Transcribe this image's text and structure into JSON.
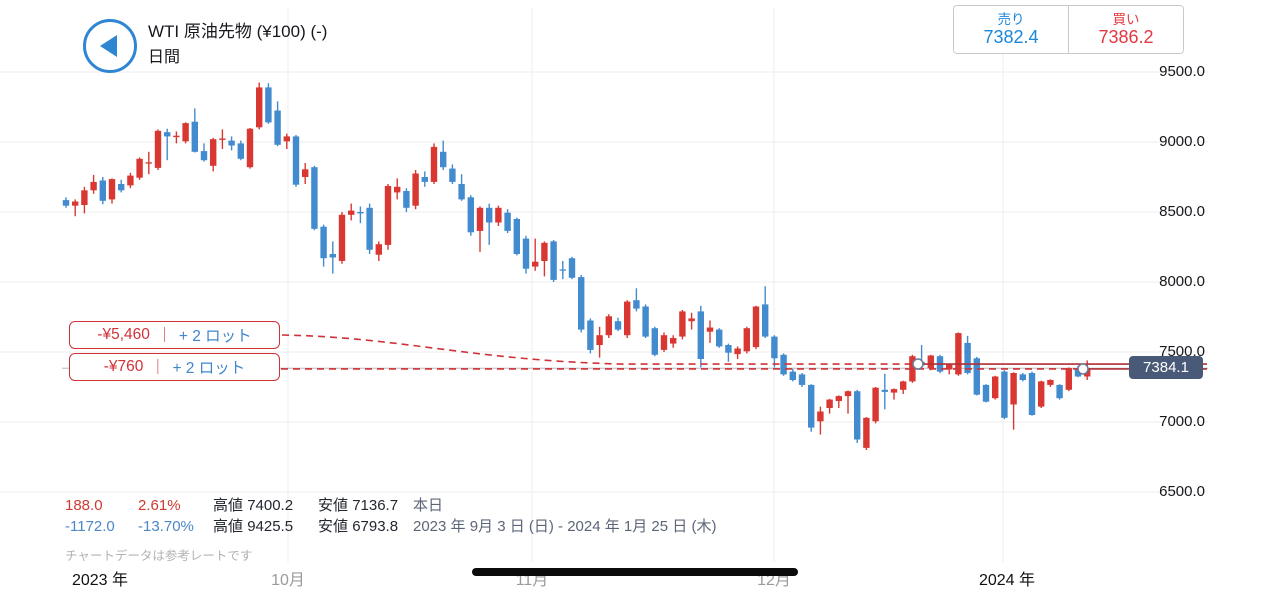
{
  "header": {
    "title": "WTI 原油先物 (¥100) (-)",
    "timeframe": "日間"
  },
  "quote_panel": {
    "sell_label": "売り",
    "sell_price": "7382.4",
    "buy_label": "買い",
    "buy_price": "7386.2"
  },
  "positions": [
    {
      "pnl": "-¥5,460",
      "divider": "｜",
      "lots": "+ 2 ロット"
    },
    {
      "pnl": "-¥760",
      "divider": "｜",
      "lots": "+ 2 ロット"
    }
  ],
  "price_badge": "7384.1",
  "stats": {
    "today": {
      "change": "188.0",
      "change_pct": "2.61%",
      "high_label": "高値",
      "high": "7400.2",
      "low_label": "安値",
      "low": "7136.7",
      "period": "本日"
    },
    "range": {
      "change": "-1172.0",
      "change_pct": "-13.70%",
      "high_label": "高値",
      "high": "9425.5",
      "low_label": "安値",
      "low": "6793.8",
      "period": "2023 年 9月 3 日 (日) - 2024 年 1月 25 日 (木)"
    }
  },
  "disclaimer": "チャートデータは参考レートです",
  "chart_data": {
    "type": "candlestick",
    "symbol": "WTI 原油先物 (¥100)",
    "timeframe": "日間",
    "current_price": 7384.1,
    "y_axis": {
      "ticks": [
        "9500.0",
        "9000.0",
        "8500.0",
        "8000.0",
        "7500.0",
        "7000.0",
        "6500.0"
      ],
      "tick_values": [
        9500,
        9000,
        8500,
        8000,
        7500,
        7000,
        6500
      ],
      "range": [
        6500,
        9500
      ]
    },
    "x_axis": {
      "labels": [
        "2023 年",
        "10月",
        "11月",
        "12月",
        "2024 年"
      ],
      "major": [
        true,
        false,
        false,
        false,
        true
      ]
    },
    "colors": {
      "up": "#d93832",
      "down": "#428bce",
      "grid": "#ededed",
      "dashed_line": "#cf3339",
      "solid_line": "#b12f36",
      "price_line": "#a9b0ba",
      "badge_bg": "#495a78"
    },
    "position_lines": [
      {
        "price": 7414,
        "label_pnl": "-¥5,460",
        "lots": "+ 2 ロット",
        "marker_x_frac": 0.835
      },
      {
        "price": 7379,
        "label_pnl": "-¥760",
        "lots": "+ 2 ロット",
        "marker_x_frac": 0.997
      }
    ],
    "candles_ohlc": [
      [
        8585,
        8605,
        8530,
        8545
      ],
      [
        8545,
        8590,
        8470,
        8575
      ],
      [
        8550,
        8680,
        8490,
        8655
      ],
      [
        8655,
        8765,
        8630,
        8715
      ],
      [
        8725,
        8750,
        8555,
        8580
      ],
      [
        8590,
        8740,
        8560,
        8735
      ],
      [
        8700,
        8730,
        8640,
        8655
      ],
      [
        8690,
        8780,
        8670,
        8760
      ],
      [
        8745,
        8890,
        8730,
        8880
      ],
      [
        8850,
        8930,
        8770,
        8855
      ],
      [
        8815,
        9090,
        8800,
        9080
      ],
      [
        9070,
        9095,
        8870,
        9040
      ],
      [
        9035,
        9075,
        8990,
        9045
      ],
      [
        9005,
        9140,
        8990,
        9135
      ],
      [
        9145,
        9240,
        8925,
        8930
      ],
      [
        8935,
        8990,
        8860,
        8870
      ],
      [
        8830,
        9030,
        8790,
        9020
      ],
      [
        9015,
        9090,
        8950,
        9025
      ],
      [
        9010,
        9040,
        8940,
        8975
      ],
      [
        8990,
        9010,
        8870,
        8880
      ],
      [
        8820,
        9100,
        8810,
        9095
      ],
      [
        9105,
        9425,
        9090,
        9390
      ],
      [
        9390,
        9420,
        9130,
        9140
      ],
      [
        9225,
        9290,
        8970,
        8980
      ],
      [
        9005,
        9060,
        8950,
        9040
      ],
      [
        9040,
        9050,
        8680,
        8695
      ],
      [
        8750,
        8850,
        8700,
        8805
      ],
      [
        8820,
        8830,
        8370,
        8380
      ],
      [
        8395,
        8410,
        8110,
        8170
      ],
      [
        8200,
        8290,
        8060,
        8175
      ],
      [
        8150,
        8500,
        8130,
        8480
      ],
      [
        8480,
        8560,
        8440,
        8510
      ],
      [
        8500,
        8540,
        8420,
        8490
      ],
      [
        8530,
        8560,
        8200,
        8230
      ],
      [
        8195,
        8290,
        8150,
        8270
      ],
      [
        8265,
        8700,
        8230,
        8686
      ],
      [
        8640,
        8740,
        8590,
        8680
      ],
      [
        8650,
        8670,
        8500,
        8530
      ],
      [
        8545,
        8800,
        8520,
        8775
      ],
      [
        8750,
        8790,
        8680,
        8715
      ],
      [
        8715,
        8990,
        8700,
        8965
      ],
      [
        8930,
        9010,
        8800,
        8820
      ],
      [
        8810,
        8840,
        8700,
        8715
      ],
      [
        8700,
        8770,
        8580,
        8590
      ],
      [
        8605,
        8620,
        8330,
        8355
      ],
      [
        8365,
        8540,
        8215,
        8530
      ],
      [
        8530,
        8560,
        8265,
        8425
      ],
      [
        8425,
        8545,
        8400,
        8530
      ],
      [
        8495,
        8520,
        8350,
        8365
      ],
      [
        8450,
        8460,
        8190,
        8200
      ],
      [
        8310,
        8330,
        8060,
        8095
      ],
      [
        8110,
        8310,
        8080,
        8145
      ],
      [
        8150,
        8290,
        8040,
        8280
      ],
      [
        8290,
        8300,
        8000,
        8015
      ],
      [
        8090,
        8150,
        8020,
        8085
      ],
      [
        8170,
        8180,
        8020,
        8030
      ],
      [
        8035,
        8050,
        7640,
        7660
      ],
      [
        7725,
        7740,
        7490,
        7515
      ],
      [
        7550,
        7680,
        7460,
        7620
      ],
      [
        7620,
        7770,
        7600,
        7755
      ],
      [
        7720,
        7745,
        7650,
        7660
      ],
      [
        7620,
        7870,
        7600,
        7860
      ],
      [
        7870,
        7955,
        7790,
        7810
      ],
      [
        7825,
        7840,
        7600,
        7610
      ],
      [
        7670,
        7680,
        7470,
        7480
      ],
      [
        7515,
        7640,
        7500,
        7620
      ],
      [
        7560,
        7620,
        7530,
        7600
      ],
      [
        7610,
        7800,
        7590,
        7790
      ],
      [
        7720,
        7780,
        7660,
        7740
      ],
      [
        7790,
        7830,
        7390,
        7450
      ],
      [
        7645,
        7725,
        7565,
        7675
      ],
      [
        7660,
        7670,
        7530,
        7540
      ],
      [
        7550,
        7560,
        7430,
        7495
      ],
      [
        7485,
        7540,
        7450,
        7525
      ],
      [
        7505,
        7680,
        7490,
        7670
      ],
      [
        7535,
        7830,
        7520,
        7825
      ],
      [
        7840,
        7970,
        7600,
        7610
      ],
      [
        7610,
        7620,
        7390,
        7455
      ],
      [
        7480,
        7490,
        7330,
        7340
      ],
      [
        7360,
        7380,
        7290,
        7300
      ],
      [
        7340,
        7350,
        7250,
        7265
      ],
      [
        7265,
        7270,
        6930,
        6960
      ],
      [
        7005,
        7110,
        6910,
        7075
      ],
      [
        7100,
        7165,
        7060,
        7160
      ],
      [
        7150,
        7190,
        7100,
        7185
      ],
      [
        7185,
        7225,
        7060,
        7220
      ],
      [
        7220,
        7230,
        6850,
        6875
      ],
      [
        6815,
        7035,
        6800,
        7030
      ],
      [
        7005,
        7250,
        6990,
        7245
      ],
      [
        7230,
        7345,
        7090,
        7215
      ],
      [
        7210,
        7240,
        7160,
        7235
      ],
      [
        7230,
        7295,
        7200,
        7290
      ],
      [
        7290,
        7480,
        7280,
        7470
      ],
      [
        7430,
        7550,
        7385,
        7405
      ],
      [
        7385,
        7480,
        7370,
        7475
      ],
      [
        7470,
        7480,
        7350,
        7360
      ],
      [
        7375,
        7415,
        7340,
        7410
      ],
      [
        7340,
        7640,
        7330,
        7635
      ],
      [
        7565,
        7615,
        7340,
        7350
      ],
      [
        7455,
        7465,
        7190,
        7195
      ],
      [
        7265,
        7270,
        7140,
        7145
      ],
      [
        7170,
        7330,
        7160,
        7325
      ],
      [
        7360,
        7370,
        7020,
        7030
      ],
      [
        7125,
        7355,
        6945,
        7350
      ],
      [
        7340,
        7350,
        7290,
        7300
      ],
      [
        7350,
        7360,
        7045,
        7050
      ],
      [
        7110,
        7295,
        7100,
        7290
      ],
      [
        7265,
        7305,
        7250,
        7300
      ],
      [
        7265,
        7270,
        7160,
        7170
      ],
      [
        7230,
        7390,
        7220,
        7385
      ],
      [
        7385,
        7400,
        7320,
        7325
      ],
      [
        7325,
        7440,
        7300,
        7384
      ]
    ]
  }
}
